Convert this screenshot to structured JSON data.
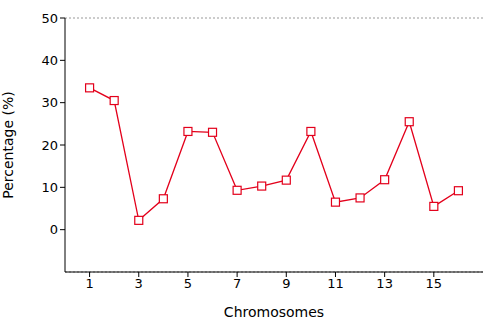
{
  "chart_data": {
    "type": "line",
    "x_label": "Chromosomes",
    "y_label": "Percentage (%)",
    "x": [
      1,
      2,
      3,
      4,
      5,
      6,
      7,
      8,
      9,
      10,
      11,
      12,
      13,
      14,
      15,
      16
    ],
    "values": [
      33.5,
      30.5,
      2.2,
      7.3,
      23.2,
      23.0,
      9.3,
      10.3,
      11.7,
      23.2,
      6.5,
      7.5,
      11.8,
      25.5,
      5.5,
      9.2
    ],
    "color": "#e3001b",
    "marker": "square",
    "xlim": [
      0,
      17
    ],
    "xticks": [
      1,
      3,
      5,
      7,
      9,
      11,
      13,
      15
    ],
    "ylim": [
      -10,
      50
    ],
    "yticks": [
      0,
      10,
      20,
      30,
      40,
      50
    ],
    "grid": true
  }
}
